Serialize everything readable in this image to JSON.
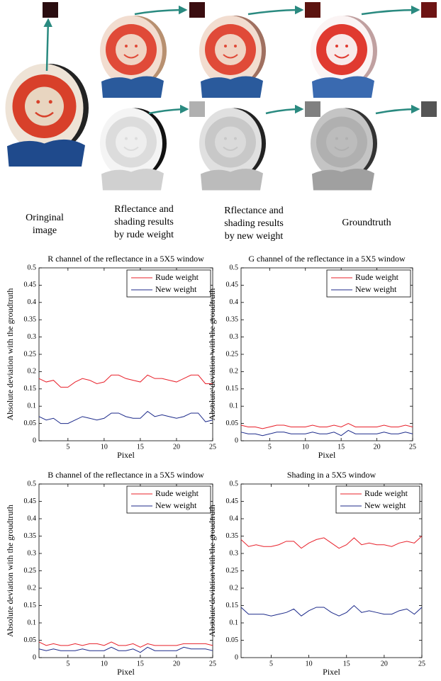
{
  "figure": {
    "captions": [
      [
        "Oringinal",
        "image"
      ],
      [
        "Rflectance and",
        "shading results",
        "by rude weight"
      ],
      [
        "Rflectance and",
        "shading results",
        "by new weight"
      ],
      [
        "Groundtruth"
      ]
    ]
  },
  "chart_data": [
    {
      "type": "line",
      "title": "R channel of the reflectance in a 5X5 window",
      "x_label": "Pixel",
      "y_label": "Absolute deviation with the groudtruth",
      "x": [
        1,
        2,
        3,
        4,
        5,
        6,
        7,
        8,
        9,
        10,
        11,
        12,
        13,
        14,
        15,
        16,
        17,
        18,
        19,
        20,
        21,
        22,
        23,
        24,
        25
      ],
      "xlim": [
        1,
        25
      ],
      "xticks": [
        5,
        10,
        15,
        20,
        25
      ],
      "ylim": [
        0,
        0.5
      ],
      "yticks": [
        0,
        0.05,
        0.1,
        0.15,
        0.2,
        0.25,
        0.3,
        0.35,
        0.4,
        0.45,
        0.5
      ],
      "legend": "upper right",
      "series": [
        {
          "name": "Rude weight",
          "color": "#e8202a",
          "values": [
            0.18,
            0.17,
            0.175,
            0.155,
            0.155,
            0.17,
            0.18,
            0.175,
            0.165,
            0.17,
            0.19,
            0.19,
            0.18,
            0.175,
            0.17,
            0.19,
            0.18,
            0.18,
            0.175,
            0.17,
            0.18,
            0.19,
            0.19,
            0.165,
            0.165
          ]
        },
        {
          "name": "New weight",
          "color": "#1c2a8a",
          "values": [
            0.07,
            0.06,
            0.065,
            0.05,
            0.05,
            0.06,
            0.07,
            0.065,
            0.06,
            0.065,
            0.08,
            0.08,
            0.07,
            0.065,
            0.065,
            0.085,
            0.07,
            0.075,
            0.07,
            0.065,
            0.07,
            0.08,
            0.08,
            0.055,
            0.06
          ]
        }
      ]
    },
    {
      "type": "line",
      "title": "G channel of the reflectance in a 5X5 window",
      "x_label": "Pixel",
      "y_label": "Absolute deviation with the groudtruth",
      "x": [
        1,
        2,
        3,
        4,
        5,
        6,
        7,
        8,
        9,
        10,
        11,
        12,
        13,
        14,
        15,
        16,
        17,
        18,
        19,
        20,
        21,
        22,
        23,
        24,
        25
      ],
      "xlim": [
        1,
        25
      ],
      "xticks": [
        5,
        10,
        15,
        20,
        25
      ],
      "ylim": [
        0,
        0.5
      ],
      "yticks": [
        0,
        0.05,
        0.1,
        0.15,
        0.2,
        0.25,
        0.3,
        0.35,
        0.4,
        0.45,
        0.5
      ],
      "legend": "upper right",
      "series": [
        {
          "name": "Rude weight",
          "color": "#e8202a",
          "values": [
            0.045,
            0.04,
            0.04,
            0.035,
            0.04,
            0.045,
            0.045,
            0.04,
            0.04,
            0.04,
            0.045,
            0.04,
            0.04,
            0.045,
            0.04,
            0.05,
            0.04,
            0.04,
            0.04,
            0.04,
            0.045,
            0.04,
            0.04,
            0.045,
            0.04
          ]
        },
        {
          "name": "New weight",
          "color": "#1c2a8a",
          "values": [
            0.025,
            0.02,
            0.02,
            0.015,
            0.02,
            0.025,
            0.025,
            0.02,
            0.02,
            0.02,
            0.025,
            0.02,
            0.02,
            0.025,
            0.015,
            0.03,
            0.02,
            0.02,
            0.02,
            0.02,
            0.025,
            0.02,
            0.02,
            0.025,
            0.02
          ]
        }
      ]
    },
    {
      "type": "line",
      "title": "B channel of the reflectance in a 5X5 window",
      "x_label": "Pixel",
      "y_label": "Absolute deviation with the groudtruth",
      "x": [
        1,
        2,
        3,
        4,
        5,
        6,
        7,
        8,
        9,
        10,
        11,
        12,
        13,
        14,
        15,
        16,
        17,
        18,
        19,
        20,
        21,
        22,
        23,
        24,
        25
      ],
      "xlim": [
        1,
        25
      ],
      "xticks": [
        5,
        10,
        15,
        20,
        25
      ],
      "ylim": [
        0,
        0.5
      ],
      "yticks": [
        0,
        0.05,
        0.1,
        0.15,
        0.2,
        0.25,
        0.3,
        0.35,
        0.4,
        0.45,
        0.5
      ],
      "legend": "upper right",
      "series": [
        {
          "name": "Rude weight",
          "color": "#e8202a",
          "values": [
            0.045,
            0.035,
            0.04,
            0.035,
            0.035,
            0.04,
            0.035,
            0.04,
            0.04,
            0.035,
            0.045,
            0.035,
            0.035,
            0.04,
            0.03,
            0.04,
            0.035,
            0.035,
            0.035,
            0.035,
            0.04,
            0.04,
            0.04,
            0.04,
            0.035
          ]
        },
        {
          "name": "New weight",
          "color": "#1c2a8a",
          "values": [
            0.025,
            0.02,
            0.025,
            0.02,
            0.02,
            0.02,
            0.025,
            0.02,
            0.02,
            0.02,
            0.03,
            0.02,
            0.02,
            0.025,
            0.015,
            0.03,
            0.02,
            0.02,
            0.02,
            0.02,
            0.03,
            0.025,
            0.025,
            0.025,
            0.02
          ]
        }
      ]
    },
    {
      "type": "line",
      "title": "Shading in a 5X5 window",
      "x_label": "Pixel",
      "y_label": "Absolute deviation with the groudtruth",
      "x": [
        1,
        2,
        3,
        4,
        5,
        6,
        7,
        8,
        9,
        10,
        11,
        12,
        13,
        14,
        15,
        16,
        17,
        18,
        19,
        20,
        21,
        22,
        23,
        24,
        25
      ],
      "xlim": [
        1,
        25
      ],
      "xticks": [
        5,
        10,
        15,
        20,
        25
      ],
      "ylim": [
        0,
        0.5
      ],
      "yticks": [
        0,
        0.05,
        0.1,
        0.15,
        0.2,
        0.25,
        0.3,
        0.35,
        0.4,
        0.45,
        0.5
      ],
      "legend": "upper right",
      "series": [
        {
          "name": "Rude weight",
          "color": "#e8202a",
          "values": [
            0.34,
            0.32,
            0.325,
            0.32,
            0.32,
            0.325,
            0.335,
            0.335,
            0.315,
            0.33,
            0.34,
            0.345,
            0.33,
            0.315,
            0.325,
            0.345,
            0.325,
            0.33,
            0.325,
            0.325,
            0.32,
            0.33,
            0.335,
            0.33,
            0.35
          ]
        },
        {
          "name": "New weight",
          "color": "#1c2a8a",
          "values": [
            0.145,
            0.125,
            0.125,
            0.125,
            0.12,
            0.125,
            0.13,
            0.14,
            0.12,
            0.135,
            0.145,
            0.145,
            0.13,
            0.12,
            0.13,
            0.15,
            0.13,
            0.135,
            0.13,
            0.125,
            0.125,
            0.135,
            0.14,
            0.125,
            0.145
          ]
        }
      ]
    }
  ]
}
